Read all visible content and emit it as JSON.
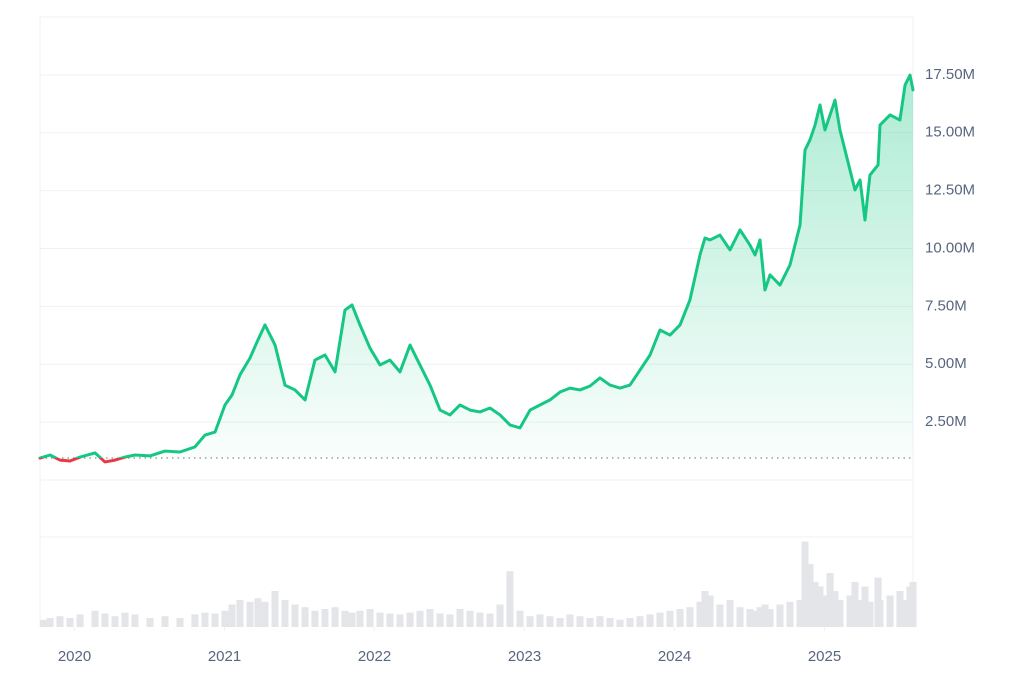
{
  "chart_data": {
    "type": "line",
    "color": "#16c784",
    "down_color": "#ea3943",
    "volume_color": "#e3e5e8",
    "baseline": 950000,
    "xlim": [
      2019.77,
      2025.59
    ],
    "xticks": [
      2020,
      2021,
      2022,
      2023,
      2024,
      2025
    ],
    "ylim": [
      0,
      20000000
    ],
    "yticks": [
      {
        "value": 2500000,
        "label": "2.50M"
      },
      {
        "value": 5000000,
        "label": "5.00M"
      },
      {
        "value": 7500000,
        "label": "7.50M"
      },
      {
        "value": 10000000,
        "label": "10.00M"
      },
      {
        "value": 12500000,
        "label": "12.50M"
      },
      {
        "value": 15000000,
        "label": "15.00M"
      },
      {
        "value": 17500000,
        "label": "17.50M"
      }
    ],
    "grid": true,
    "vlim": [
      0,
      100
    ],
    "x": [
      2019.77,
      2019.837,
      2019.903,
      2019.97,
      2020.037,
      2020.137,
      2020.203,
      2020.27,
      2020.337,
      2020.403,
      2020.503,
      2020.603,
      2020.703,
      2020.803,
      2020.87,
      2020.937,
      2021.003,
      2021.05,
      2021.103,
      2021.17,
      2021.223,
      2021.27,
      2021.337,
      2021.403,
      2021.47,
      2021.537,
      2021.603,
      2021.67,
      2021.737,
      2021.803,
      2021.85,
      2021.903,
      2021.97,
      2022.037,
      2022.103,
      2022.17,
      2022.237,
      2022.303,
      2022.37,
      2022.437,
      2022.503,
      2022.57,
      2022.637,
      2022.703,
      2022.77,
      2022.837,
      2022.903,
      2022.97,
      2023.037,
      2023.103,
      2023.17,
      2023.237,
      2023.303,
      2023.37,
      2023.437,
      2023.503,
      2023.57,
      2023.637,
      2023.703,
      2023.77,
      2023.837,
      2023.903,
      2023.97,
      2024.037,
      2024.103,
      2024.17,
      2024.203,
      2024.237,
      2024.303,
      2024.37,
      2024.437,
      2024.503,
      2024.537,
      2024.57,
      2024.603,
      2024.637,
      2024.703,
      2024.77,
      2024.837,
      2024.87,
      2024.903,
      2024.937,
      2024.97,
      2025.003,
      2025.037,
      2025.07,
      2025.103,
      2025.17,
      2025.203,
      2025.237,
      2025.27,
      2025.303,
      2025.357,
      2025.37,
      2025.437,
      2025.503,
      2025.537,
      2025.57,
      2025.59
    ],
    "values": [
      950000,
      1080000,
      860000,
      820000,
      990000,
      1170000,
      780000,
      860000,
      990000,
      1080000,
      1040000,
      1250000,
      1210000,
      1430000,
      1940000,
      2070000,
      3240000,
      3670000,
      4540000,
      5270000,
      6050000,
      6700000,
      5830000,
      4100000,
      3890000,
      3460000,
      5180000,
      5400000,
      4670000,
      7340000,
      7560000,
      6700000,
      5700000,
      4970000,
      5180000,
      4670000,
      5830000,
      4970000,
      4100000,
      3020000,
      2810000,
      3240000,
      3020000,
      2940000,
      3110000,
      2810000,
      2380000,
      2250000,
      3020000,
      3240000,
      3460000,
      3800000,
      3970000,
      3890000,
      4060000,
      4410000,
      4100000,
      3970000,
      4100000,
      4750000,
      5400000,
      6480000,
      6260000,
      6700000,
      7780000,
      9720000,
      10450000,
      10370000,
      10580000,
      9940000,
      10800000,
      10150000,
      9720000,
      10370000,
      8210000,
      8860000,
      8420000,
      9290000,
      11020000,
      14250000,
      14690000,
      15330000,
      16200000,
      15120000,
      15770000,
      16410000,
      15120000,
      13390000,
      12530000,
      12960000,
      11230000,
      13170000,
      13610000,
      15330000,
      15770000,
      15550000,
      17060000,
      17490000,
      16850000
    ],
    "volume": [
      8,
      10,
      12,
      10,
      14,
      18,
      15,
      12,
      16,
      14,
      10,
      12,
      10,
      14,
      16,
      15,
      18,
      25,
      30,
      28,
      32,
      28,
      40,
      30,
      25,
      22,
      18,
      20,
      22,
      18,
      16,
      18,
      20,
      16,
      15,
      14,
      16,
      18,
      20,
      15,
      14,
      20,
      18,
      16,
      15,
      25,
      62,
      18,
      12,
      14,
      12,
      10,
      14,
      12,
      10,
      12,
      10,
      8,
      10,
      12,
      14,
      16,
      18,
      20,
      22,
      28,
      40,
      35,
      25,
      30,
      22,
      20,
      18,
      22,
      25,
      20,
      25,
      28,
      30,
      95,
      70,
      50,
      45,
      35,
      60,
      40,
      30,
      35,
      50,
      30,
      45,
      28,
      55,
      30,
      35,
      40,
      30,
      45,
      50
    ]
  }
}
